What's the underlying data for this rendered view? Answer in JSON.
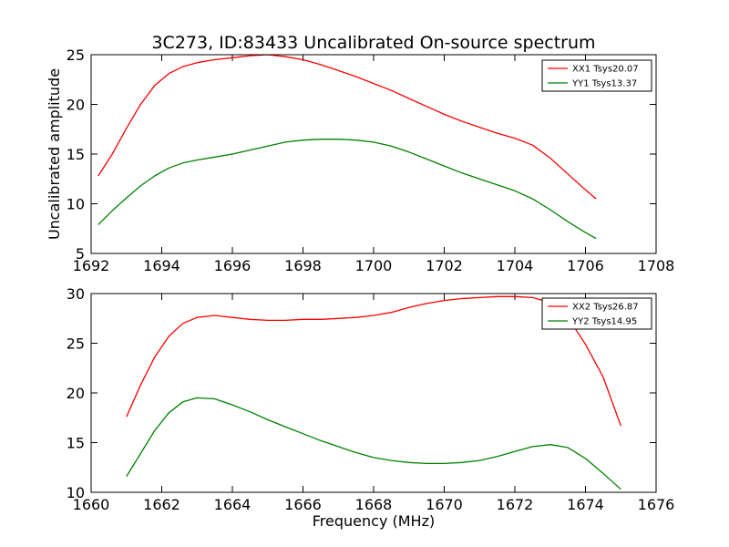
{
  "chart_data": [
    {
      "type": "line",
      "title": "3C273, ID:83433 Uncalibrated On-source spectrum",
      "xlabel": "",
      "ylabel": "Uncalibrated amplitude",
      "xlim": [
        1692,
        1708
      ],
      "ylim": [
        5,
        25
      ],
      "xticks": [
        1692,
        1694,
        1696,
        1698,
        1700,
        1702,
        1704,
        1706,
        1708
      ],
      "yticks": [
        5,
        10,
        15,
        20,
        25
      ],
      "legend_position": "top-right",
      "grid": false,
      "series": [
        {
          "name": "XX1 Tsys20.07",
          "color": "#ff0000",
          "x": [
            1692.2,
            1692.6,
            1693.0,
            1693.4,
            1693.8,
            1694.2,
            1694.6,
            1695.0,
            1695.5,
            1696.0,
            1696.5,
            1697.0,
            1697.5,
            1698.0,
            1698.5,
            1699.0,
            1699.5,
            1700.0,
            1700.5,
            1701.0,
            1701.5,
            1702.0,
            1702.5,
            1703.0,
            1703.5,
            1704.0,
            1704.5,
            1705.0,
            1705.5,
            1706.0,
            1706.3
          ],
          "y": [
            12.8,
            15.0,
            17.6,
            20.0,
            21.9,
            23.1,
            23.8,
            24.2,
            24.5,
            24.7,
            24.9,
            25.0,
            24.8,
            24.5,
            24.0,
            23.4,
            22.8,
            22.1,
            21.4,
            20.6,
            19.8,
            19.0,
            18.3,
            17.7,
            17.1,
            16.6,
            15.9,
            14.6,
            13.0,
            11.4,
            10.5
          ]
        },
        {
          "name": "YY1 Tsys13.37",
          "color": "#008000",
          "x": [
            1692.2,
            1692.6,
            1693.0,
            1693.4,
            1693.8,
            1694.2,
            1694.6,
            1695.0,
            1695.5,
            1696.0,
            1696.5,
            1697.0,
            1697.5,
            1698.0,
            1698.5,
            1699.0,
            1699.5,
            1700.0,
            1700.5,
            1701.0,
            1701.5,
            1702.0,
            1702.5,
            1703.0,
            1703.5,
            1704.0,
            1704.5,
            1705.0,
            1705.5,
            1706.0,
            1706.3
          ],
          "y": [
            7.9,
            9.3,
            10.6,
            11.8,
            12.8,
            13.6,
            14.1,
            14.4,
            14.7,
            15.0,
            15.4,
            15.8,
            16.2,
            16.4,
            16.5,
            16.5,
            16.4,
            16.2,
            15.8,
            15.2,
            14.5,
            13.8,
            13.1,
            12.5,
            11.9,
            11.3,
            10.5,
            9.4,
            8.2,
            7.1,
            6.5
          ]
        }
      ]
    },
    {
      "type": "line",
      "title": "",
      "xlabel": "Frequency (MHz)",
      "ylabel": "",
      "xlim": [
        1660,
        1676
      ],
      "ylim": [
        10,
        30
      ],
      "xticks": [
        1660,
        1662,
        1664,
        1666,
        1668,
        1670,
        1672,
        1674,
        1676
      ],
      "yticks": [
        10,
        15,
        20,
        25,
        30
      ],
      "legend_position": "top-right",
      "grid": false,
      "series": [
        {
          "name": "XX2 Tsys26.87",
          "color": "#ff0000",
          "x": [
            1661.0,
            1661.4,
            1661.8,
            1662.2,
            1662.6,
            1663.0,
            1663.5,
            1664.0,
            1664.5,
            1665.0,
            1665.5,
            1666.0,
            1666.5,
            1667.0,
            1667.5,
            1668.0,
            1668.5,
            1669.0,
            1669.5,
            1670.0,
            1670.5,
            1671.0,
            1671.5,
            1672.0,
            1672.5,
            1673.0,
            1673.5,
            1674.0,
            1674.5,
            1675.0
          ],
          "y": [
            17.6,
            20.8,
            23.6,
            25.7,
            27.0,
            27.6,
            27.8,
            27.6,
            27.4,
            27.3,
            27.3,
            27.4,
            27.4,
            27.5,
            27.6,
            27.8,
            28.1,
            28.6,
            29.0,
            29.3,
            29.5,
            29.6,
            29.7,
            29.7,
            29.6,
            29.1,
            27.6,
            24.9,
            21.6,
            16.7
          ]
        },
        {
          "name": "YY2 Tsys14.95",
          "color": "#008000",
          "x": [
            1661.0,
            1661.4,
            1661.8,
            1662.2,
            1662.6,
            1663.0,
            1663.5,
            1664.0,
            1664.5,
            1665.0,
            1665.5,
            1666.0,
            1666.5,
            1667.0,
            1667.5,
            1668.0,
            1668.5,
            1669.0,
            1669.5,
            1670.0,
            1670.5,
            1671.0,
            1671.5,
            1672.0,
            1672.5,
            1673.0,
            1673.5,
            1674.0,
            1674.5,
            1675.0
          ],
          "y": [
            11.6,
            13.9,
            16.2,
            18.0,
            19.1,
            19.5,
            19.4,
            18.8,
            18.1,
            17.3,
            16.6,
            15.9,
            15.2,
            14.6,
            14.0,
            13.5,
            13.2,
            13.0,
            12.9,
            12.9,
            13.0,
            13.2,
            13.6,
            14.1,
            14.6,
            14.8,
            14.5,
            13.4,
            11.9,
            10.3
          ]
        }
      ]
    }
  ]
}
